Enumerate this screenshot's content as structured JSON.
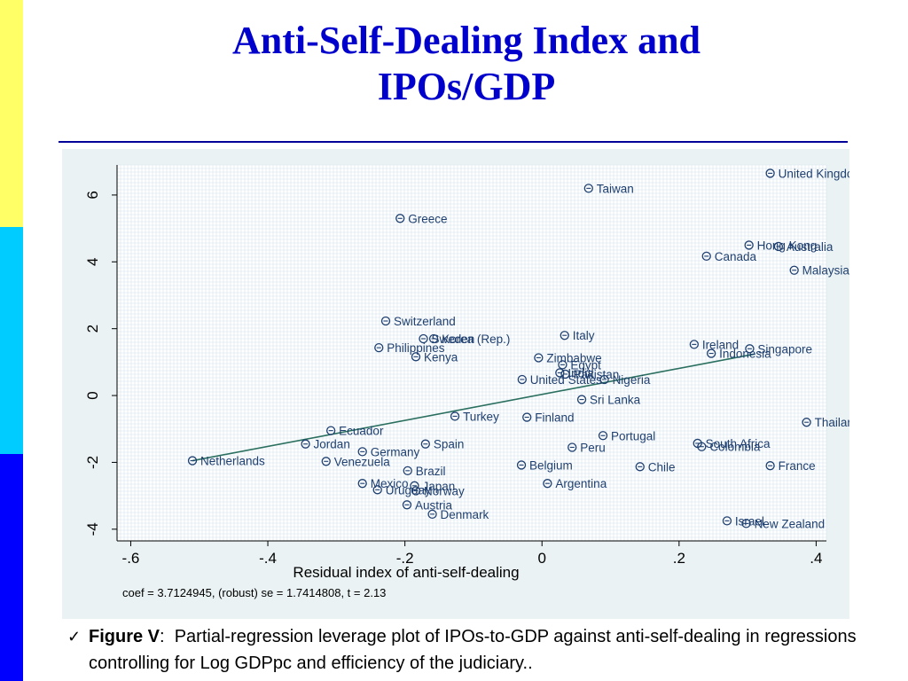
{
  "slide": {
    "title_line1": "Anti-Self-Dealing Index and",
    "title_line2": "IPOs/GDP",
    "colors": {
      "title": "#0000CC",
      "sidebar": [
        "#FFFF66",
        "#00CCFF",
        "#0000FF"
      ]
    }
  },
  "caption": {
    "check_icon": "checkmark-icon",
    "figure_label": "Figure V",
    "separator": ":",
    "text": "Partial-regression leverage plot of IPOs-to-GDP against anti-self-dealing in regressions controlling for Log GDPpc and efficiency of the judiciary.."
  },
  "chart_data": {
    "type": "scatter",
    "xlabel": "Residual index of anti-self-dealing",
    "ylabel": "",
    "note": "coef = 3.7124945, (robust) se = 1.7414808, t = 2.13",
    "xlim": [
      -0.62,
      0.415
    ],
    "ylim": [
      -4.35,
      6.9
    ],
    "x_ticks": [
      {
        "value": -0.6,
        "label": "-.6"
      },
      {
        "value": -0.4,
        "label": "-.4"
      },
      {
        "value": -0.2,
        "label": "-.2"
      },
      {
        "value": 0,
        "label": "0"
      },
      {
        "value": 0.2,
        "label": ".2"
      },
      {
        "value": 0.4,
        "label": ".4"
      }
    ],
    "y_ticks": [
      {
        "value": -4,
        "label": "-4"
      },
      {
        "value": -2,
        "label": "-2"
      },
      {
        "value": 0,
        "label": "0"
      },
      {
        "value": 2,
        "label": "2"
      },
      {
        "value": 4,
        "label": "4"
      },
      {
        "value": 6,
        "label": "6"
      }
    ],
    "grid": true,
    "fit_line": {
      "x": [
        -0.51,
        0.31
      ],
      "y": [
        -1.95,
        1.24
      ]
    },
    "colors": {
      "points": "#1F3F6F",
      "labels": "#1F3F6F",
      "fit": "#2A6F5F",
      "panel": "#EAF2F3"
    },
    "points": [
      {
        "label": "United Kingdom",
        "x": 0.333,
        "y": 6.65
      },
      {
        "label": "Taiwan",
        "x": 0.068,
        "y": 6.2
      },
      {
        "label": "Greece",
        "x": -0.207,
        "y": 5.3
      },
      {
        "label": "Hong Kong",
        "x": 0.302,
        "y": 4.5
      },
      {
        "label": "Australia",
        "x": 0.345,
        "y": 4.46
      },
      {
        "label": "Canada",
        "x": 0.24,
        "y": 4.17
      },
      {
        "label": "Malaysia",
        "x": 0.368,
        "y": 3.75
      },
      {
        "label": "Switzerland",
        "x": -0.228,
        "y": 2.23
      },
      {
        "label": "Korea (Rep.)",
        "x": -0.158,
        "y": 1.7
      },
      {
        "label": "Sweden",
        "x": -0.173,
        "y": 1.7
      },
      {
        "label": "Italy",
        "x": 0.033,
        "y": 1.8
      },
      {
        "label": "Philippines",
        "x": -0.238,
        "y": 1.43
      },
      {
        "label": "Ireland",
        "x": 0.222,
        "y": 1.53
      },
      {
        "label": "Singapore",
        "x": 0.303,
        "y": 1.4
      },
      {
        "label": "Indonesia",
        "x": 0.247,
        "y": 1.26
      },
      {
        "label": "Kenya",
        "x": -0.184,
        "y": 1.16
      },
      {
        "label": "Zimbabwe",
        "x": -0.005,
        "y": 1.13
      },
      {
        "label": "Egypt",
        "x": 0.03,
        "y": 0.92
      },
      {
        "label": "India",
        "x": 0.026,
        "y": 0.68
      },
      {
        "label": "Pakistan",
        "x": 0.034,
        "y": 0.64
      },
      {
        "label": "Nigeria",
        "x": 0.091,
        "y": 0.48
      },
      {
        "label": "United States",
        "x": -0.029,
        "y": 0.48
      },
      {
        "label": "Sri Lanka",
        "x": 0.058,
        "y": -0.12
      },
      {
        "label": "Turkey",
        "x": -0.127,
        "y": -0.62
      },
      {
        "label": "Finland",
        "x": -0.022,
        "y": -0.65
      },
      {
        "label": "Thailand",
        "x": 0.386,
        "y": -0.8
      },
      {
        "label": "Ecuador",
        "x": -0.308,
        "y": -1.05
      },
      {
        "label": "Portugal",
        "x": 0.089,
        "y": -1.2
      },
      {
        "label": "Jordan",
        "x": -0.345,
        "y": -1.45
      },
      {
        "label": "Spain",
        "x": -0.17,
        "y": -1.45
      },
      {
        "label": "South Africa",
        "x": 0.227,
        "y": -1.43
      },
      {
        "label": "Colombia",
        "x": 0.233,
        "y": -1.53
      },
      {
        "label": "Peru",
        "x": 0.044,
        "y": -1.55
      },
      {
        "label": "Germany",
        "x": -0.262,
        "y": -1.68
      },
      {
        "label": "Netherlands",
        "x": -0.51,
        "y": -1.95
      },
      {
        "label": "Venezuela",
        "x": -0.315,
        "y": -1.97
      },
      {
        "label": "Belgium",
        "x": -0.03,
        "y": -2.08
      },
      {
        "label": "France",
        "x": 0.333,
        "y": -2.1
      },
      {
        "label": "Chile",
        "x": 0.143,
        "y": -2.13
      },
      {
        "label": "Brazil",
        "x": -0.196,
        "y": -2.25
      },
      {
        "label": "Mexico",
        "x": -0.262,
        "y": -2.63
      },
      {
        "label": "Japan",
        "x": -0.186,
        "y": -2.7
      },
      {
        "label": "Argentina",
        "x": 0.008,
        "y": -2.63
      },
      {
        "label": "Uruguay",
        "x": -0.24,
        "y": -2.82
      },
      {
        "label": "Norway",
        "x": -0.184,
        "y": -2.85
      },
      {
        "label": "Austria",
        "x": -0.197,
        "y": -3.27
      },
      {
        "label": "Denmark",
        "x": -0.16,
        "y": -3.55
      },
      {
        "label": "Israel",
        "x": 0.27,
        "y": -3.75
      },
      {
        "label": "New Zealand",
        "x": 0.298,
        "y": -3.83
      }
    ]
  }
}
